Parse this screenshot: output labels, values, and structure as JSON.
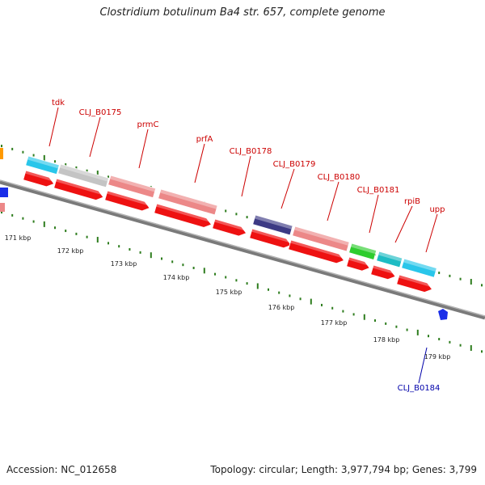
{
  "title": "Clostridium botulinum Ba4 str. 657, complete genome",
  "footer": {
    "accession": "Accession: NC_012658",
    "summary": "Topology: circular; Length: 3,977,794 bp; Genes: 3,799"
  },
  "colors": {
    "background": "#ffffff",
    "backbone": "#7a7a7a",
    "tick": "#2e7d1e",
    "label_top": "#cc0000",
    "label_bottom": "#0000aa",
    "cds": "#ee1111",
    "cyan": "#29c6ea",
    "gray": "#c4c4c4",
    "salmon": "#ec8888",
    "navy": "#3d3a84",
    "green": "#2ecc2e",
    "teal": "#1ebcc4",
    "blue": "#1a2ee8",
    "orange": "#ff9900"
  },
  "kbp_labels": [
    "171 kbp",
    "172 kbp",
    "173 kbp",
    "174 kbp",
    "175 kbp",
    "176 kbp",
    "177 kbp",
    "178 kbp",
    "179 kbp"
  ],
  "top_features": [
    {
      "label": "tdk",
      "color": "cyan"
    },
    {
      "label": "CLJ_B0175",
      "color": "gray"
    },
    {
      "label": "prmC",
      "color": "salmon"
    },
    {
      "label": "prfA",
      "color": "salmon"
    },
    {
      "label": "CLJ_B0178",
      "color": "cds"
    },
    {
      "label": "CLJ_B0179",
      "color": "navy"
    },
    {
      "label": "CLJ_B0180",
      "color": "salmon"
    },
    {
      "label": "CLJ_B0181",
      "color": "green"
    },
    {
      "label": "rpiB",
      "color": "teal"
    },
    {
      "label": "upp",
      "color": "cyan"
    }
  ],
  "bottom_features": [
    {
      "label": "CLJ_B0184",
      "color": "blue"
    }
  ]
}
